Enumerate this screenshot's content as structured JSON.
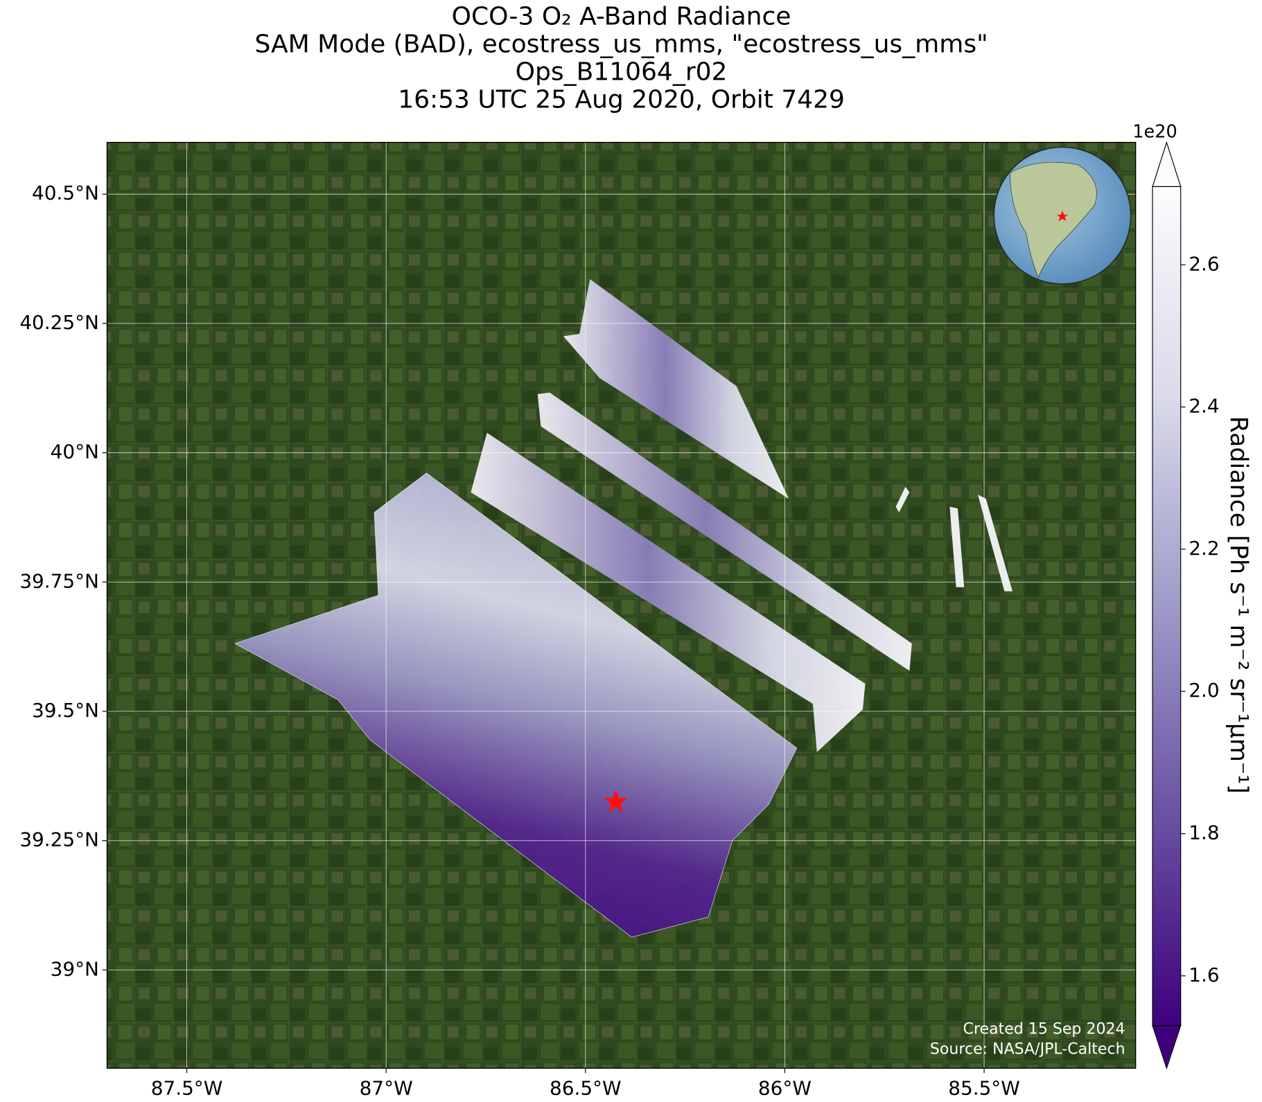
{
  "title_lines": [
    "OCO-3 O₂ A-Band Radiance",
    "SAM Mode (BAD), ecostress_us_mms, \"ecostress_us_mms\"",
    "Ops_B11064_r02",
    "16:53 UTC 25 Aug 2020, Orbit 7429"
  ],
  "map": {
    "xlim": [
      -87.7,
      -85.12
    ],
    "ylim": [
      38.81,
      40.6
    ],
    "xticks": [
      {
        "value": -87.5,
        "label": "87.5°W"
      },
      {
        "value": -87,
        "label": "87°W"
      },
      {
        "value": -86.5,
        "label": "86.5°W"
      },
      {
        "value": -86,
        "label": "86°W"
      },
      {
        "value": -85.5,
        "label": "85.5°W"
      }
    ],
    "yticks": [
      {
        "value": 39,
        "label": "39°N"
      },
      {
        "value": 39.25,
        "label": "39.25°N"
      },
      {
        "value": 39.5,
        "label": "39.5°N"
      },
      {
        "value": 39.75,
        "label": "39.75°N"
      },
      {
        "value": 40,
        "label": "40°N"
      },
      {
        "value": 40.25,
        "label": "40.25°N"
      },
      {
        "value": 40.5,
        "label": "40.5°N"
      }
    ],
    "grid": true
  },
  "colorbar": {
    "clim": [
      1.53,
      2.71
    ],
    "ticks": [
      1.6,
      1.8,
      {
        "value": 2,
        "label": "2.0"
      },
      2.2,
      2.4,
      2.6
    ],
    "offset": "1e20",
    "label": "Radiance [Ph s⁻¹ m⁻² sr⁻¹μm⁻¹]",
    "extend": "both"
  },
  "annotations": [
    "Created 15 Sep 2024",
    "Source: NASA/JPL-Caltech"
  ]
}
